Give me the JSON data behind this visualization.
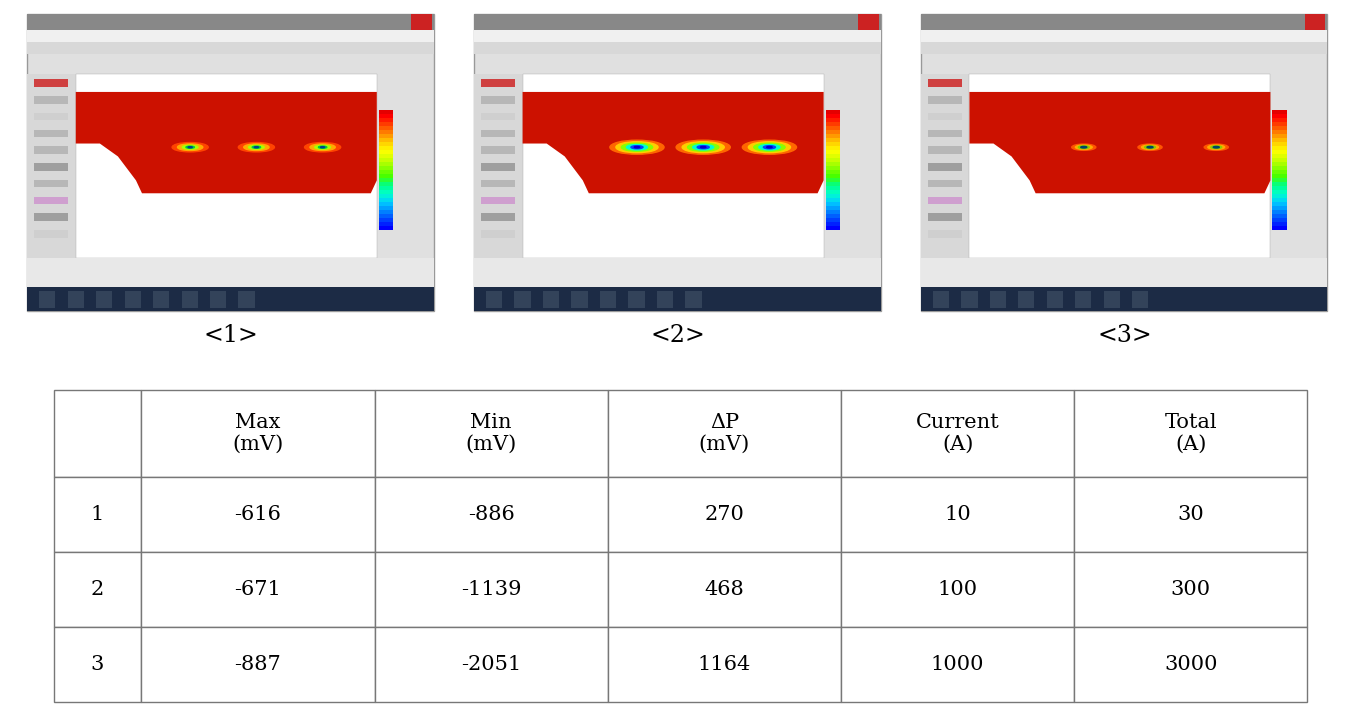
{
  "captions": [
    "<1>",
    "<2>",
    "<3>"
  ],
  "table_col_headers_line1": [
    "",
    "Max",
    "Min",
    "ΔP",
    "Current",
    "Total"
  ],
  "table_col_headers_line2": [
    "",
    "(mV)",
    "(mV)",
    "(mV)",
    "(A)",
    "(A)"
  ],
  "table_rows": [
    [
      "1",
      "-616",
      "-886",
      "270",
      "10",
      "30"
    ],
    [
      "2",
      "-671",
      "-1139",
      "468",
      "100",
      "300"
    ],
    [
      "3",
      "-887",
      "-2051",
      "1164",
      "1000",
      "3000"
    ]
  ],
  "bg_color": "#ffffff",
  "text_color": "#000000",
  "caption_fontsize": 17,
  "table_fontsize": 15,
  "anode_radii_case1": [
    0.055,
    0.035,
    0.018,
    0.009
  ],
  "anode_radii_case2": [
    0.085,
    0.06,
    0.038,
    0.018
  ],
  "anode_radii_case3": [
    0.03,
    0.018,
    0.01,
    0.005
  ],
  "window_bg": "#e8e8e8",
  "titlebar_color": "#cc0000",
  "toolbar_color": "#d8d8d8",
  "viewport_bg": "#f5f5f5",
  "left_panel_color": "#d0d0d0",
  "taskbar_color": "#1a1a2e",
  "status_bar_color": "#c8c8c8"
}
